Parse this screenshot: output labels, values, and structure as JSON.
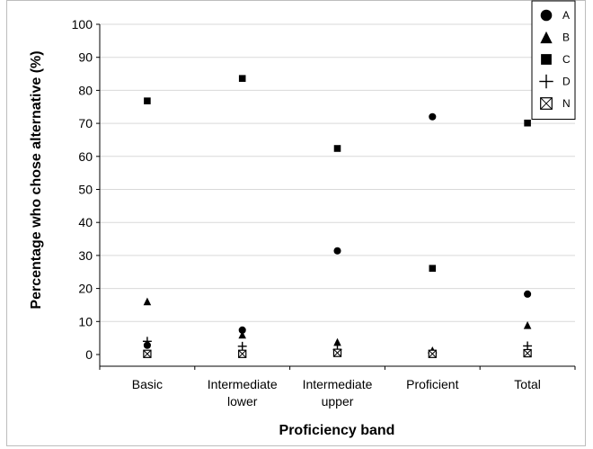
{
  "chart_data": {
    "type": "scatter",
    "title": "",
    "xlabel": "Proficiency band",
    "ylabel": "Percentage who chose alternative (%)",
    "ylim": [
      0,
      100
    ],
    "yticks": [
      0,
      10,
      20,
      30,
      40,
      50,
      60,
      70,
      80,
      90,
      100
    ],
    "grid": true,
    "legend_position": "top-right",
    "categories": [
      [
        "Basic"
      ],
      [
        "Intermediate",
        "lower"
      ],
      [
        "Intermediate",
        "upper"
      ],
      [
        "Proficient"
      ],
      [
        "Total"
      ]
    ],
    "series": [
      {
        "name": "A",
        "marker": "circle",
        "values": [
          2.8,
          7.4,
          31.4,
          72.0,
          18.3
        ]
      },
      {
        "name": "B",
        "marker": "triangle",
        "values": [
          16.1,
          6.0,
          3.8,
          1.3,
          8.9
        ]
      },
      {
        "name": "C",
        "marker": "square",
        "values": [
          76.8,
          83.6,
          62.4,
          26.1,
          70.1
        ]
      },
      {
        "name": "D",
        "marker": "plus",
        "values": [
          4.0,
          2.5,
          1.5,
          0.5,
          2.6
        ]
      },
      {
        "name": "N",
        "marker": "crossbox",
        "values": [
          0.2,
          0.2,
          0.5,
          0.2,
          0.4
        ]
      }
    ]
  }
}
